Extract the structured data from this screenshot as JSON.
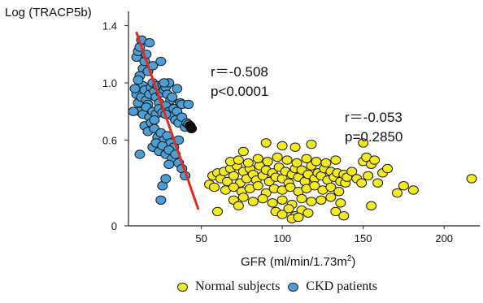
{
  "chart_data": {
    "type": "scatter",
    "title": "",
    "xlabel_prefix": "GFR (ml/min/1.73m",
    "xlabel_sup": "2",
    "xlabel_suffix": ")",
    "ylabel": "Log (TRACP5b)",
    "xlim": [
      5,
      222
    ],
    "ylim": [
      0,
      1.5
    ],
    "x_ticks": [
      {
        "value": 50,
        "label": "50"
      },
      {
        "value": 100,
        "label": "100"
      },
      {
        "value": 150,
        "label": "150"
      },
      {
        "value": 200,
        "label": "200"
      }
    ],
    "y_ticks": [
      {
        "value": 0,
        "label": "0"
      },
      {
        "value": 0.6,
        "label": "0.6"
      },
      {
        "value": 1.0,
        "label": "1.0"
      },
      {
        "value": 1.4,
        "label": "1.4"
      }
    ],
    "grid": false,
    "legend_position": "bottom",
    "series": [
      {
        "name": "Normal subjects",
        "color": "#f4ea20",
        "points": [
          [
            55,
            0.29
          ],
          [
            57,
            0.35
          ],
          [
            58,
            0.27
          ],
          [
            60,
            0.37
          ],
          [
            62,
            0.33
          ],
          [
            64,
            0.38
          ],
          [
            66,
            0.31
          ],
          [
            68,
            0.4
          ],
          [
            70,
            0.35
          ],
          [
            72,
            0.42
          ],
          [
            74,
            0.3
          ],
          [
            76,
            0.38
          ],
          [
            78,
            0.33
          ],
          [
            80,
            0.4
          ],
          [
            82,
            0.36
          ],
          [
            84,
            0.32
          ],
          [
            86,
            0.42
          ],
          [
            88,
            0.35
          ],
          [
            90,
            0.39
          ],
          [
            92,
            0.31
          ],
          [
            94,
            0.37
          ],
          [
            96,
            0.34
          ],
          [
            98,
            0.41
          ],
          [
            100,
            0.33
          ],
          [
            102,
            0.38
          ],
          [
            104,
            0.3
          ],
          [
            106,
            0.36
          ],
          [
            108,
            0.4
          ],
          [
            110,
            0.34
          ],
          [
            112,
            0.39
          ],
          [
            114,
            0.31
          ],
          [
            116,
            0.36
          ],
          [
            118,
            0.42
          ],
          [
            120,
            0.33
          ],
          [
            122,
            0.37
          ],
          [
            124,
            0.35
          ],
          [
            126,
            0.4
          ],
          [
            128,
            0.32
          ],
          [
            130,
            0.38
          ],
          [
            132,
            0.34
          ],
          [
            134,
            0.37
          ],
          [
            136,
            0.31
          ],
          [
            138,
            0.36
          ],
          [
            139,
            0.3
          ],
          [
            140,
            0.34
          ],
          [
            65,
            0.25
          ],
          [
            70,
            0.27
          ],
          [
            75,
            0.24
          ],
          [
            80,
            0.26
          ],
          [
            85,
            0.28
          ],
          [
            90,
            0.23
          ],
          [
            95,
            0.26
          ],
          [
            100,
            0.25
          ],
          [
            105,
            0.27
          ],
          [
            110,
            0.24
          ],
          [
            115,
            0.26
          ],
          [
            120,
            0.28
          ],
          [
            125,
            0.25
          ],
          [
            130,
            0.27
          ],
          [
            135,
            0.24
          ],
          [
            68,
            0.45
          ],
          [
            73,
            0.46
          ],
          [
            79,
            0.44
          ],
          [
            85,
            0.47
          ],
          [
            91,
            0.45
          ],
          [
            97,
            0.48
          ],
          [
            103,
            0.46
          ],
          [
            109,
            0.44
          ],
          [
            115,
            0.47
          ],
          [
            121,
            0.45
          ],
          [
            127,
            0.44
          ],
          [
            133,
            0.46
          ],
          [
            70,
            0.18
          ],
          [
            76,
            0.2
          ],
          [
            82,
            0.17
          ],
          [
            88,
            0.19
          ],
          [
            94,
            0.16
          ],
          [
            100,
            0.18
          ],
          [
            106,
            0.15
          ],
          [
            112,
            0.19
          ],
          [
            118,
            0.17
          ],
          [
            124,
            0.18
          ],
          [
            130,
            0.2
          ],
          [
            136,
            0.16
          ],
          [
            96,
            0.1
          ],
          [
            100,
            0.08
          ],
          [
            104,
            0.12
          ],
          [
            108,
            0.07
          ],
          [
            112,
            0.11
          ],
          [
            116,
            0.09
          ],
          [
            106,
            0.05
          ],
          [
            110,
            0.06
          ],
          [
            133,
            0.1
          ],
          [
            138,
            0.07
          ],
          [
            60,
            0.1
          ],
          [
            73,
            0.14
          ],
          [
            90,
            0.58
          ],
          [
            100,
            0.56
          ],
          [
            108,
            0.55
          ],
          [
            118,
            0.57
          ],
          [
            76,
            0.52
          ],
          [
            143,
            0.38
          ],
          [
            146,
            0.33
          ],
          [
            149,
            0.3
          ],
          [
            150,
            0.45
          ],
          [
            152,
            0.48
          ],
          [
            153,
            0.35
          ],
          [
            155,
            0.43
          ],
          [
            157,
            0.46
          ],
          [
            159,
            0.3
          ],
          [
            162,
            0.37
          ],
          [
            165,
            0.4
          ],
          [
            171,
            0.23
          ],
          [
            175,
            0.28
          ],
          [
            181,
            0.25
          ],
          [
            150,
            0.58
          ],
          [
            155,
            0.14
          ],
          [
            217,
            0.33
          ]
        ]
      },
      {
        "name": "CKD patients",
        "color": "#4b9fd6",
        "points": [
          [
            10,
            1.18
          ],
          [
            11,
            1.22
          ],
          [
            12,
            1.25
          ],
          [
            13,
            1.3
          ],
          [
            14,
            1.1
          ],
          [
            12,
            1.05
          ],
          [
            15,
            1.15
          ],
          [
            16,
            1.2
          ],
          [
            17,
            1.08
          ],
          [
            14,
            0.98
          ],
          [
            10,
            0.92
          ],
          [
            11,
            0.86
          ],
          [
            13,
            0.9
          ],
          [
            15,
            0.95
          ],
          [
            16,
            0.88
          ],
          [
            18,
            0.92
          ],
          [
            17,
            0.85
          ],
          [
            19,
            0.97
          ],
          [
            20,
            1.0
          ],
          [
            21,
            0.94
          ],
          [
            22,
            0.9
          ],
          [
            23,
            0.98
          ],
          [
            24,
            0.86
          ],
          [
            25,
            0.93
          ],
          [
            26,
            0.99
          ],
          [
            27,
            0.95
          ],
          [
            28,
            0.97
          ],
          [
            29,
            0.92
          ],
          [
            30,
            1.0
          ],
          [
            31,
            0.88
          ],
          [
            12,
            0.8
          ],
          [
            14,
            0.78
          ],
          [
            16,
            0.83
          ],
          [
            18,
            0.76
          ],
          [
            20,
            0.8
          ],
          [
            22,
            0.78
          ],
          [
            24,
            0.82
          ],
          [
            26,
            0.79
          ],
          [
            28,
            0.84
          ],
          [
            30,
            0.8
          ],
          [
            32,
            0.77
          ],
          [
            33,
            0.82
          ],
          [
            34,
            0.74
          ],
          [
            35,
            0.8
          ],
          [
            36,
            0.72
          ],
          [
            38,
            0.76
          ],
          [
            40,
            0.69
          ],
          [
            41,
            0.72
          ],
          [
            42,
            0.71
          ],
          [
            37,
            0.86
          ],
          [
            15,
            0.7
          ],
          [
            17,
            0.66
          ],
          [
            19,
            0.72
          ],
          [
            21,
            0.68
          ],
          [
            23,
            0.62
          ],
          [
            25,
            0.65
          ],
          [
            27,
            0.6
          ],
          [
            29,
            0.63
          ],
          [
            31,
            0.58
          ],
          [
            33,
            0.55
          ],
          [
            20,
            0.55
          ],
          [
            22,
            0.58
          ],
          [
            24,
            0.52
          ],
          [
            26,
            0.56
          ],
          [
            28,
            0.5
          ],
          [
            30,
            0.53
          ],
          [
            32,
            0.47
          ],
          [
            34,
            0.5
          ],
          [
            36,
            0.44
          ],
          [
            38,
            0.4
          ],
          [
            12,
            0.5
          ],
          [
            26,
            0.28
          ],
          [
            28,
            0.33
          ],
          [
            30,
            0.43
          ],
          [
            36,
            0.6
          ],
          [
            38,
            0.85
          ],
          [
            25,
            0.18
          ],
          [
            42,
            0.85
          ],
          [
            40,
            0.35
          ],
          [
            35,
            0.96
          ],
          [
            25,
            1.15
          ],
          [
            28,
            0.78
          ],
          [
            32,
            0.9
          ],
          [
            27,
            1.0
          ],
          [
            20,
            1.12
          ],
          [
            8,
            0.8
          ],
          [
            9,
            0.96
          ],
          [
            11,
            1.02
          ],
          [
            18,
            1.28
          ],
          [
            21,
            0.74
          ]
        ]
      }
    ],
    "outlier_points": [
      [
        43,
        0.7
      ],
      [
        44,
        0.68
      ]
    ],
    "trend_line": {
      "color": "#e32a1e",
      "from": [
        10,
        1.35
      ],
      "to": [
        48,
        0.12
      ]
    },
    "annotations": [
      {
        "id": "ckd",
        "r": "r＝-0.508",
        "p": "p<0.0001"
      },
      {
        "id": "normal",
        "r": "r＝-0.053",
        "p": "p=0.2850"
      }
    ]
  }
}
